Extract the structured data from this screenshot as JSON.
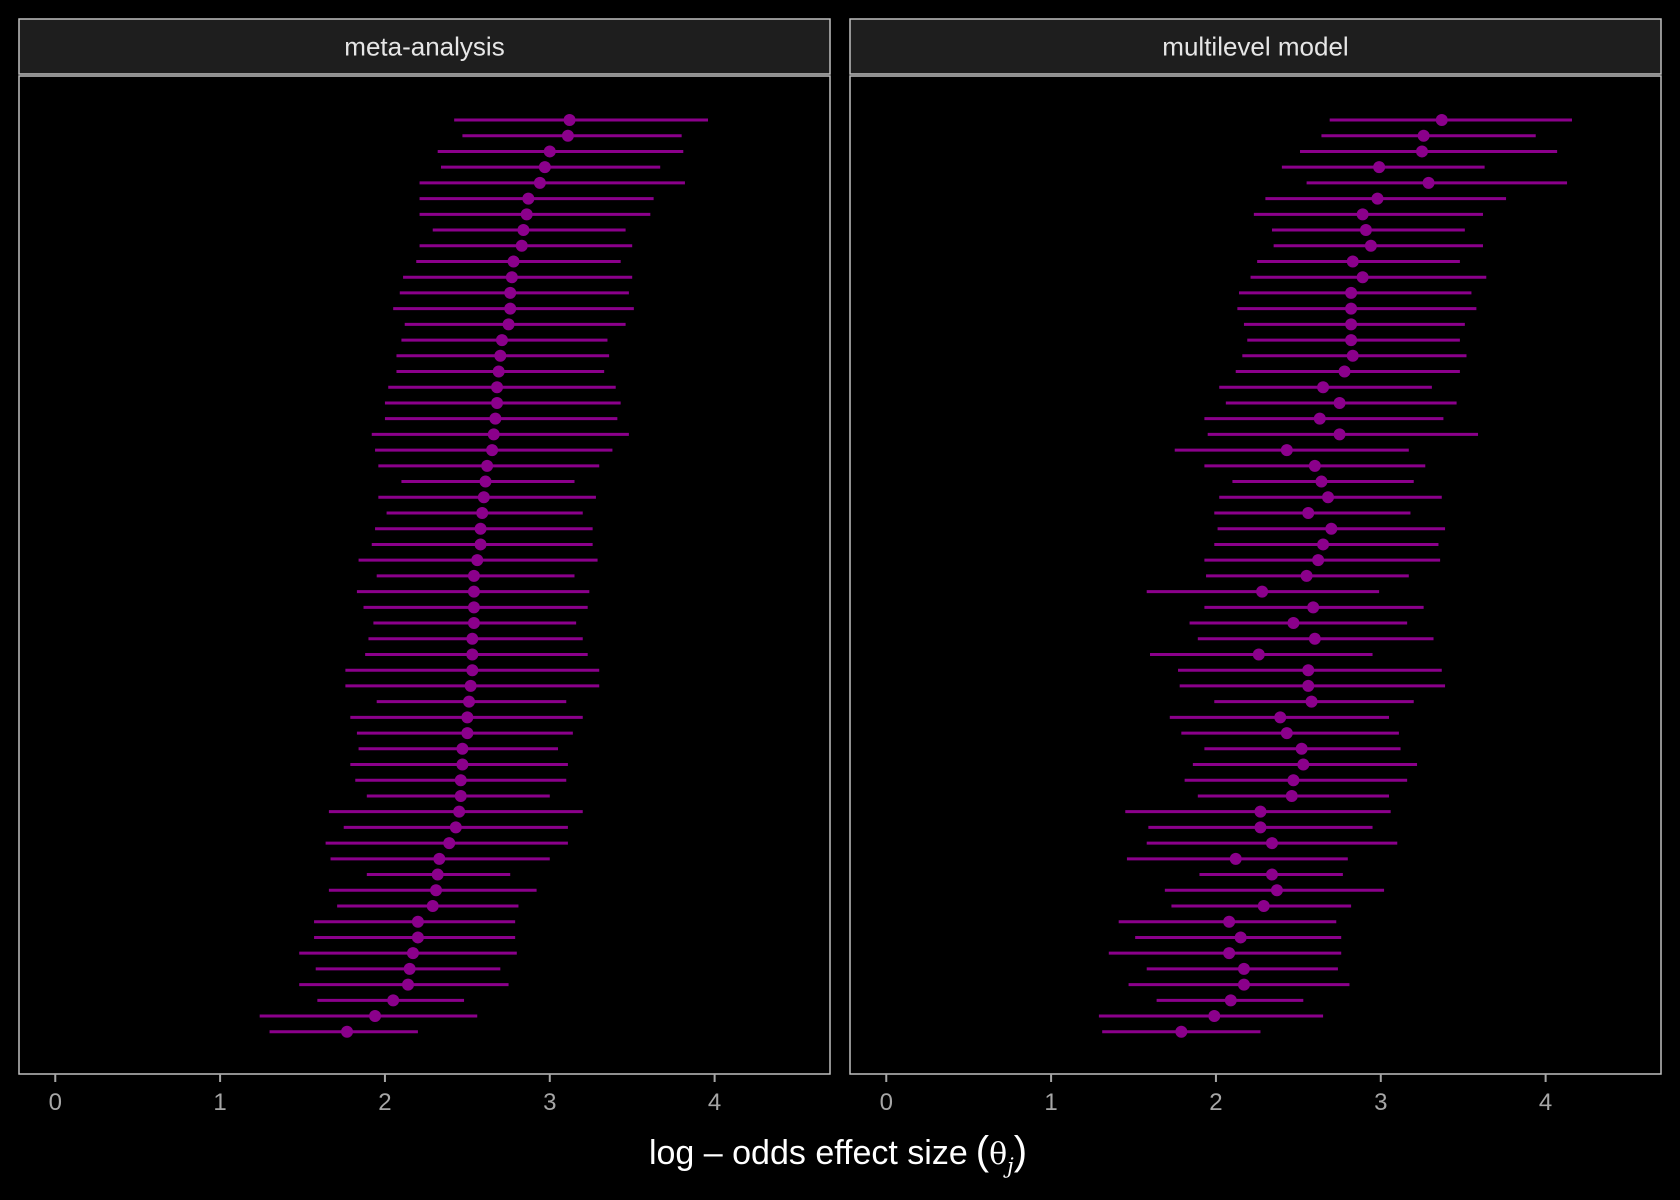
{
  "chart_data": {
    "type": "scatter",
    "subtype": "forest-plot",
    "xlabel": "log – odds effect size",
    "xlabel_symbol": "θ",
    "xlabel_subscript": "j",
    "xlim": [
      -0.22,
      4.7
    ],
    "xticks": [
      0,
      1,
      2,
      3,
      4
    ],
    "grid": false,
    "colors": {
      "point": "#8b008b",
      "interval": "#8b008b",
      "background": "#000000",
      "strip": "#1e1e1e",
      "border": "#bfbfbf",
      "tick_label": "#a6a6a6"
    },
    "panels": [
      {
        "strip_label": "meta-analysis",
        "estimate": [
          3.12,
          3.11,
          3.0,
          2.97,
          2.94,
          2.87,
          2.86,
          2.84,
          2.83,
          2.78,
          2.77,
          2.76,
          2.76,
          2.75,
          2.71,
          2.7,
          2.69,
          2.68,
          2.68,
          2.67,
          2.66,
          2.65,
          2.62,
          2.61,
          2.6,
          2.59,
          2.58,
          2.58,
          2.56,
          2.54,
          2.54,
          2.54,
          2.54,
          2.53,
          2.53,
          2.53,
          2.52,
          2.51,
          2.5,
          2.5,
          2.47,
          2.47,
          2.46,
          2.46,
          2.45,
          2.43,
          2.39,
          2.33,
          2.32,
          2.31,
          2.29,
          2.2,
          2.2,
          2.17,
          2.15,
          2.14,
          2.05,
          1.94,
          1.77
        ],
        "lower": [
          2.42,
          2.47,
          2.32,
          2.34,
          2.21,
          2.21,
          2.21,
          2.29,
          2.21,
          2.19,
          2.11,
          2.09,
          2.05,
          2.12,
          2.1,
          2.07,
          2.07,
          2.02,
          2.0,
          2.0,
          1.92,
          1.94,
          1.96,
          2.1,
          1.96,
          2.01,
          1.94,
          1.92,
          1.84,
          1.95,
          1.83,
          1.87,
          1.93,
          1.9,
          1.88,
          1.76,
          1.76,
          1.95,
          1.79,
          1.83,
          1.84,
          1.79,
          1.82,
          1.89,
          1.66,
          1.75,
          1.64,
          1.67,
          1.89,
          1.66,
          1.71,
          1.57,
          1.57,
          1.48,
          1.58,
          1.48,
          1.59,
          1.24,
          1.3
        ],
        "upper": [
          3.96,
          3.8,
          3.81,
          3.67,
          3.82,
          3.63,
          3.61,
          3.46,
          3.5,
          3.43,
          3.5,
          3.48,
          3.51,
          3.46,
          3.35,
          3.36,
          3.33,
          3.4,
          3.43,
          3.41,
          3.48,
          3.38,
          3.3,
          3.15,
          3.28,
          3.2,
          3.26,
          3.26,
          3.29,
          3.15,
          3.24,
          3.23,
          3.16,
          3.2,
          3.23,
          3.3,
          3.3,
          3.1,
          3.2,
          3.14,
          3.05,
          3.11,
          3.1,
          3.0,
          3.2,
          3.11,
          3.11,
          3.0,
          2.76,
          2.92,
          2.81,
          2.79,
          2.79,
          2.8,
          2.7,
          2.75,
          2.48,
          2.56,
          2.2
        ]
      },
      {
        "strip_label": "multilevel model",
        "estimate": [
          3.37,
          3.26,
          3.25,
          2.99,
          3.29,
          2.98,
          2.89,
          2.91,
          2.94,
          2.83,
          2.89,
          2.82,
          2.82,
          2.82,
          2.82,
          2.83,
          2.78,
          2.65,
          2.75,
          2.63,
          2.75,
          2.43,
          2.6,
          2.64,
          2.68,
          2.56,
          2.7,
          2.65,
          2.62,
          2.55,
          2.28,
          2.59,
          2.47,
          2.6,
          2.26,
          2.56,
          2.56,
          2.58,
          2.39,
          2.43,
          2.52,
          2.53,
          2.47,
          2.46,
          2.27,
          2.27,
          2.34,
          2.12,
          2.34,
          2.37,
          2.29,
          2.08,
          2.15,
          2.08,
          2.17,
          2.17,
          2.09,
          1.99,
          1.79
        ],
        "lower": [
          2.69,
          2.64,
          2.51,
          2.4,
          2.55,
          2.3,
          2.23,
          2.34,
          2.35,
          2.25,
          2.21,
          2.14,
          2.13,
          2.17,
          2.19,
          2.16,
          2.12,
          2.02,
          2.06,
          1.93,
          1.95,
          1.75,
          1.93,
          2.1,
          2.02,
          1.99,
          2.01,
          1.99,
          1.93,
          1.94,
          1.58,
          1.93,
          1.84,
          1.89,
          1.6,
          1.77,
          1.78,
          1.99,
          1.72,
          1.79,
          1.93,
          1.86,
          1.81,
          1.89,
          1.45,
          1.59,
          1.58,
          1.46,
          1.9,
          1.69,
          1.73,
          1.41,
          1.51,
          1.35,
          1.58,
          1.47,
          1.64,
          1.29,
          1.31
        ],
        "upper": [
          4.16,
          3.94,
          4.07,
          3.63,
          4.13,
          3.76,
          3.62,
          3.51,
          3.62,
          3.48,
          3.64,
          3.55,
          3.58,
          3.51,
          3.48,
          3.52,
          3.48,
          3.31,
          3.46,
          3.38,
          3.59,
          3.17,
          3.27,
          3.2,
          3.37,
          3.18,
          3.39,
          3.35,
          3.36,
          3.17,
          2.99,
          3.26,
          3.16,
          3.32,
          2.95,
          3.37,
          3.39,
          3.2,
          3.05,
          3.11,
          3.12,
          3.22,
          3.16,
          3.05,
          3.06,
          2.95,
          3.1,
          2.8,
          2.77,
          3.02,
          2.82,
          2.73,
          2.76,
          2.76,
          2.74,
          2.81,
          2.53,
          2.65,
          2.27
        ]
      }
    ]
  }
}
